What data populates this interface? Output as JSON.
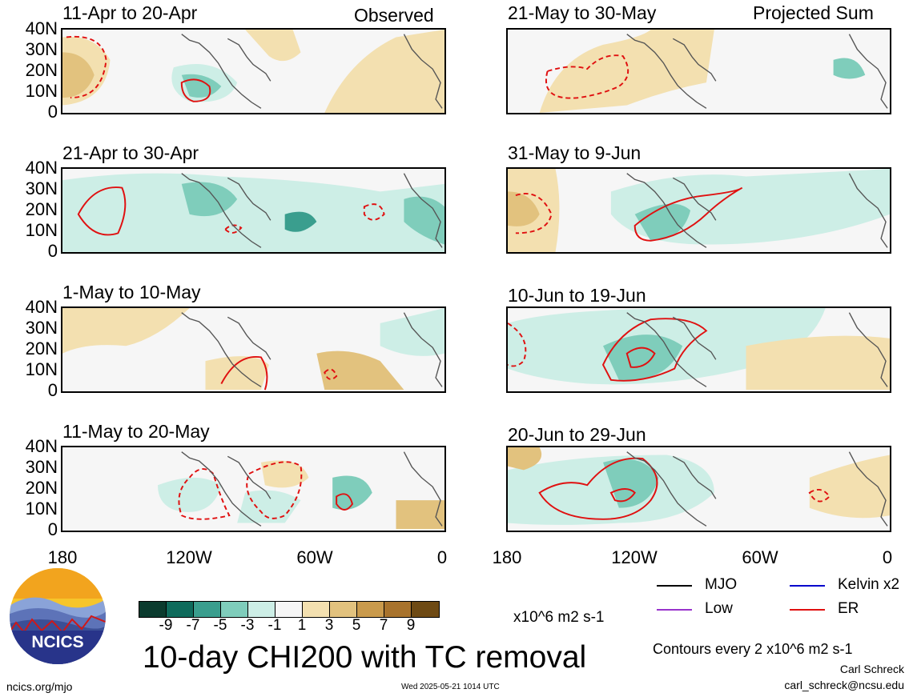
{
  "panels": [
    {
      "title": "11-Apr to 20-Apr",
      "note": "Observed"
    },
    {
      "title": "21-May to 30-May",
      "note": "Projected Sum"
    },
    {
      "title": "21-Apr to 30-Apr",
      "note": ""
    },
    {
      "title": "31-May to 9-Jun",
      "note": ""
    },
    {
      "title": "1-May to 10-May",
      "note": ""
    },
    {
      "title": "10-Jun to 19-Jun",
      "note": ""
    },
    {
      "title": "11-May to 20-May",
      "note": ""
    },
    {
      "title": "20-Jun to 29-Jun",
      "note": ""
    }
  ],
  "y_labels": [
    "40N",
    "30N",
    "20N",
    "10N",
    "0"
  ],
  "x_labels": [
    "180",
    "120W",
    "60W",
    "0"
  ],
  "colorbar": {
    "colors": [
      "#0b3b2e",
      "#0f6b5c",
      "#3a9e8e",
      "#7fcdbb",
      "#cdeee6",
      "#f6f6f6",
      "#f3e0b0",
      "#e2c27e",
      "#c99a4c",
      "#a8732d",
      "#6e4a14"
    ],
    "labels": [
      "-9",
      "-7",
      "-5",
      "-3",
      "-1",
      "1",
      "3",
      "5",
      "7",
      "9"
    ],
    "units": "x10^6 m2 s-1"
  },
  "title": "10-day CHI200 with TC removal",
  "legend": [
    {
      "label": "MJO",
      "color": "#000000"
    },
    {
      "label": "Kelvin x2",
      "color": "#0000cc"
    },
    {
      "label": "Low",
      "color": "#9933cc"
    },
    {
      "label": "ER",
      "color": "#e01010"
    }
  ],
  "contour_note": "Contours every 2 x10^6 m2 s-1",
  "author": "Carl Schreck",
  "email": "carl_schreck@ncsu.edu",
  "site": "ncics.org/mjo",
  "timestamp": "Wed 2025-05-21 1014 UTC",
  "logo": {
    "text": "NCICS",
    "icon": "ncics-logo-icon"
  }
}
